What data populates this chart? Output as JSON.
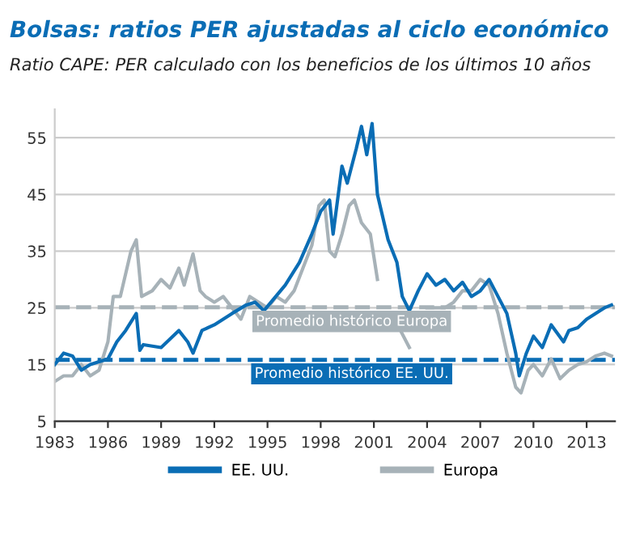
{
  "chart_data": {
    "type": "line",
    "title": "Bolsas: ratios PER ajustadas al ciclo económico",
    "subtitle": "Ratio CAPE: PER calculado con los beneficios de los últimos 10 años",
    "xlim": [
      1983,
      2014.6
    ],
    "xticks": [
      1983,
      1986,
      1989,
      1992,
      1995,
      1998,
      2001,
      2004,
      2007,
      2010,
      2013
    ],
    "ylim": [
      5,
      60
    ],
    "yticks": [
      5,
      15,
      25,
      35,
      45,
      55
    ],
    "grid": "y",
    "legend": "bottom",
    "line_style": "solid",
    "marker": "none",
    "ref_lines": [
      {
        "axis": "y",
        "value": 25.1,
        "label": "Promedio histórico Europa",
        "color": "#a7b2b8",
        "line_style": "dashed"
      },
      {
        "axis": "y",
        "value": 15.8,
        "label": "Promedio histórico EE. UU.",
        "color": "#0a6db5",
        "line_style": "dashed"
      }
    ],
    "series": [
      {
        "name": "EE. UU.",
        "color": "#0a6db5",
        "x": [
          1983,
          1983.5,
          1984,
          1984.5,
          1985,
          1985.5,
          1986,
          1986.5,
          1987,
          1987.6,
          1987.8,
          1988,
          1989,
          1989.5,
          1990,
          1990.5,
          1990.8,
          1991.3,
          1992,
          1993,
          1993.8,
          1994.3,
          1994.8,
          1995.2,
          1996,
          1996.8,
          1997.5,
          1998,
          1998.5,
          1998.7,
          1999.2,
          1999.5,
          2000,
          2000.3,
          2000.6,
          2000.9,
          2001.2,
          2001.8,
          2002.3,
          2002.6,
          2003,
          2003.5,
          2004,
          2004.5,
          2005,
          2005.5,
          2006,
          2006.5,
          2007,
          2007.5,
          2008,
          2008.5,
          2009,
          2009.2,
          2009.6,
          2010,
          2010.5,
          2011,
          2011.7,
          2012,
          2012.5,
          2013,
          2013.5,
          2014,
          2014.4
        ],
        "values": [
          15,
          17,
          16.5,
          14,
          15,
          15.5,
          16,
          19,
          21,
          24,
          17.5,
          18.5,
          18,
          19.5,
          21,
          19,
          17,
          21,
          22,
          24,
          25.5,
          26,
          24.5,
          26,
          29,
          33,
          38,
          42,
          44,
          38,
          50,
          47,
          53,
          57,
          52,
          57.5,
          45,
          37,
          33,
          27,
          24.5,
          28,
          31,
          29,
          30,
          28,
          29.5,
          27,
          28,
          30,
          27,
          24,
          17,
          13,
          17,
          20,
          18,
          22,
          19,
          21,
          21.5,
          23,
          24,
          25,
          25.5
        ]
      },
      {
        "name": "Europa",
        "color": "#a7b2b8",
        "x": [
          1983,
          1983.5,
          1984,
          1984.5,
          1985,
          1985.5,
          1986,
          1986.3,
          1986.7,
          1987.3,
          1987.6,
          1987.9,
          1988.5,
          1989,
          1989.5,
          1990,
          1990.3,
          1990.8,
          1991.2,
          1991.5,
          1992,
          1992.5,
          1993,
          1993.5,
          1994,
          1994.5,
          1995,
          1995.5,
          1996,
          1996.5,
          1997,
          1997.5,
          1997.9,
          1998.2,
          1998.5,
          1998.8,
          1999.2,
          1999.6,
          1999.9,
          2000.3,
          2000.8,
          2001.2,
          2001.6,
          2002,
          2002.5,
          2003,
          2003.5,
          2004,
          2005,
          2005.5,
          2006,
          2006.5,
          2007,
          2007.5,
          2008,
          2008.5,
          2009,
          2009.3,
          2009.7,
          2010,
          2010.5,
          2011,
          2011.5,
          2012,
          2012.5,
          2013,
          2013.5,
          2014,
          2014.4
        ],
        "values": [
          12,
          13,
          13,
          15,
          13,
          14,
          19,
          27,
          27,
          35,
          37,
          27,
          28,
          30,
          28.5,
          32,
          29,
          34.5,
          28,
          27,
          26,
          27,
          25,
          23,
          27,
          26,
          25,
          27,
          26,
          28,
          32,
          36,
          43,
          44,
          35,
          34,
          38,
          43,
          44,
          40,
          38,
          30,
          null,
          null,
          21,
          18,
          null,
          25,
          25,
          26,
          28,
          28,
          30,
          29,
          24,
          17,
          11,
          10,
          14,
          15,
          13,
          16,
          12.5,
          14,
          15,
          15.5,
          16.5,
          17,
          16.5
        ]
      }
    ]
  }
}
